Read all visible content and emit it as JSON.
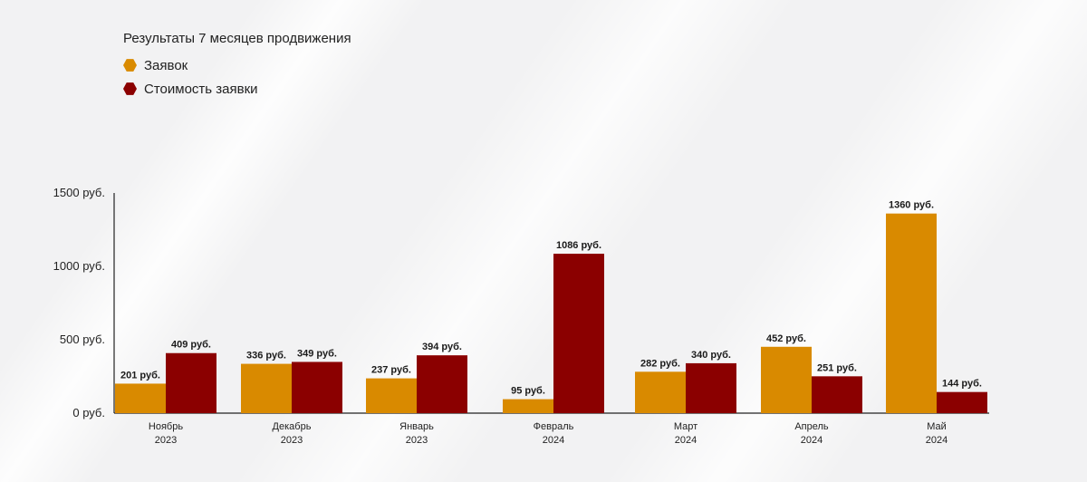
{
  "chart_data": {
    "type": "bar",
    "title": "Результаты 7 месяцев продвижения",
    "categories": [
      [
        "Ноябрь",
        "2023"
      ],
      [
        "Декабрь",
        "2023"
      ],
      [
        "Январь",
        "2023"
      ],
      [
        "Февраль",
        "2024"
      ],
      [
        "Март",
        "2024"
      ],
      [
        "Апрель",
        "2024"
      ],
      [
        "Май",
        "2024"
      ]
    ],
    "series": [
      {
        "name": "Заявок",
        "color": "#d98a00",
        "values": [
          201,
          336,
          237,
          95,
          282,
          452,
          1360
        ],
        "labels": [
          "201 руб.",
          "336 руб.",
          "237 руб.",
          "95 руб.",
          "282 руб.",
          "452 руб.",
          "1360 руб."
        ]
      },
      {
        "name": "Стоимость заявки",
        "color": "#8b0000",
        "values": [
          409,
          349,
          394,
          1086,
          340,
          251,
          144
        ],
        "labels": [
          "409 руб.",
          "349 руб.",
          "394 руб.",
          "1086 руб.",
          "340 руб.",
          "251 руб.",
          "144 руб."
        ]
      }
    ],
    "y_ticks": [
      {
        "value": 1500,
        "label": "1500 руб."
      },
      {
        "value": 1000,
        "label": "1000 руб."
      },
      {
        "value": 500,
        "label": "500 руб."
      },
      {
        "value": 0,
        "label": "0 руб."
      }
    ],
    "ylim": [
      0,
      1500
    ],
    "grid": false,
    "legend": "top-left"
  }
}
